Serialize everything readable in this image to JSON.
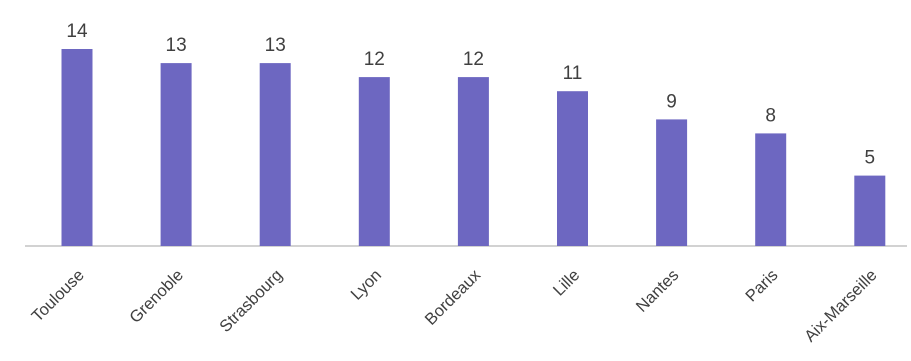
{
  "chart_data": {
    "type": "bar",
    "categories": [
      "Toulouse",
      "Grenoble",
      "Strasbourg",
      "Lyon",
      "Bordeaux",
      "Lille",
      "Nantes",
      "Paris",
      "Aix-Marseille"
    ],
    "values": [
      14,
      13,
      13,
      12,
      12,
      11,
      9,
      8,
      5
    ],
    "title": "",
    "xlabel": "",
    "ylabel": "",
    "ylim": [
      0,
      14
    ],
    "grid": false,
    "legend": "none",
    "data_labels": true,
    "tick_label_rotation_deg": -45,
    "bar_color": "#6d67c1",
    "axis_color": "#a6a6a6",
    "text_color": "#404040"
  }
}
